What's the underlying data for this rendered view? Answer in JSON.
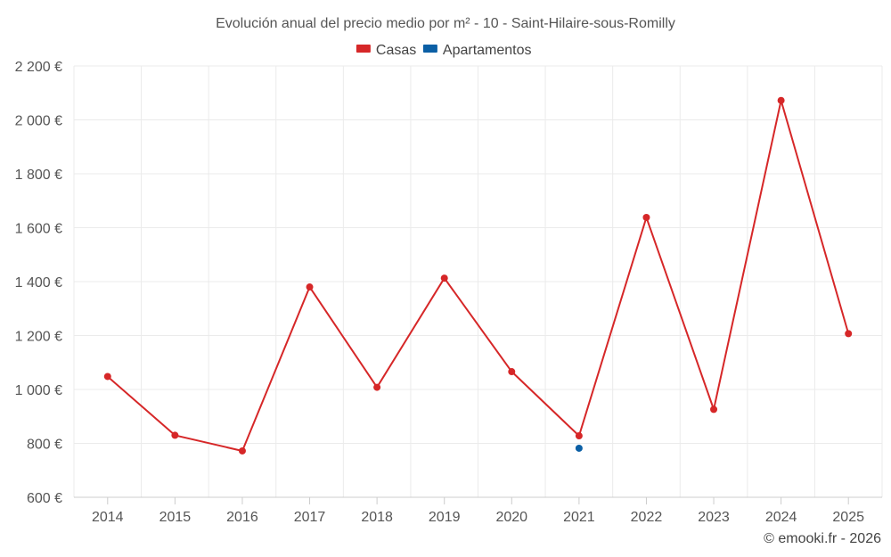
{
  "chart_data": {
    "type": "line",
    "title": "Evolución anual del precio medio por m² - 10 - Saint-Hilaire-sous-Romilly",
    "categories": [
      "2014",
      "2015",
      "2016",
      "2017",
      "2018",
      "2019",
      "2020",
      "2021",
      "2022",
      "2023",
      "2024",
      "2025"
    ],
    "series": [
      {
        "name": "Casas",
        "color": "#d62728",
        "values": [
          1048,
          830,
          772,
          1380,
          1008,
          1413,
          1066,
          828,
          1638,
          926,
          2072,
          1207
        ]
      },
      {
        "name": "Apartamentos",
        "color": "#0b5fa5",
        "values": [
          null,
          null,
          null,
          null,
          null,
          null,
          null,
          782,
          null,
          null,
          null,
          null
        ]
      }
    ],
    "ylim": [
      600,
      2200
    ],
    "yticks": [
      600,
      800,
      1000,
      1200,
      1400,
      1600,
      1800,
      2000,
      2200
    ],
    "ytick_labels": [
      "600 €",
      "800 €",
      "1 000 €",
      "1 200 €",
      "1 400 €",
      "1 600 €",
      "1 800 €",
      "2 000 €",
      "2 200 €"
    ],
    "grid": true,
    "legend_position": "top-center",
    "credit": "© emooki.fr - 2026"
  }
}
